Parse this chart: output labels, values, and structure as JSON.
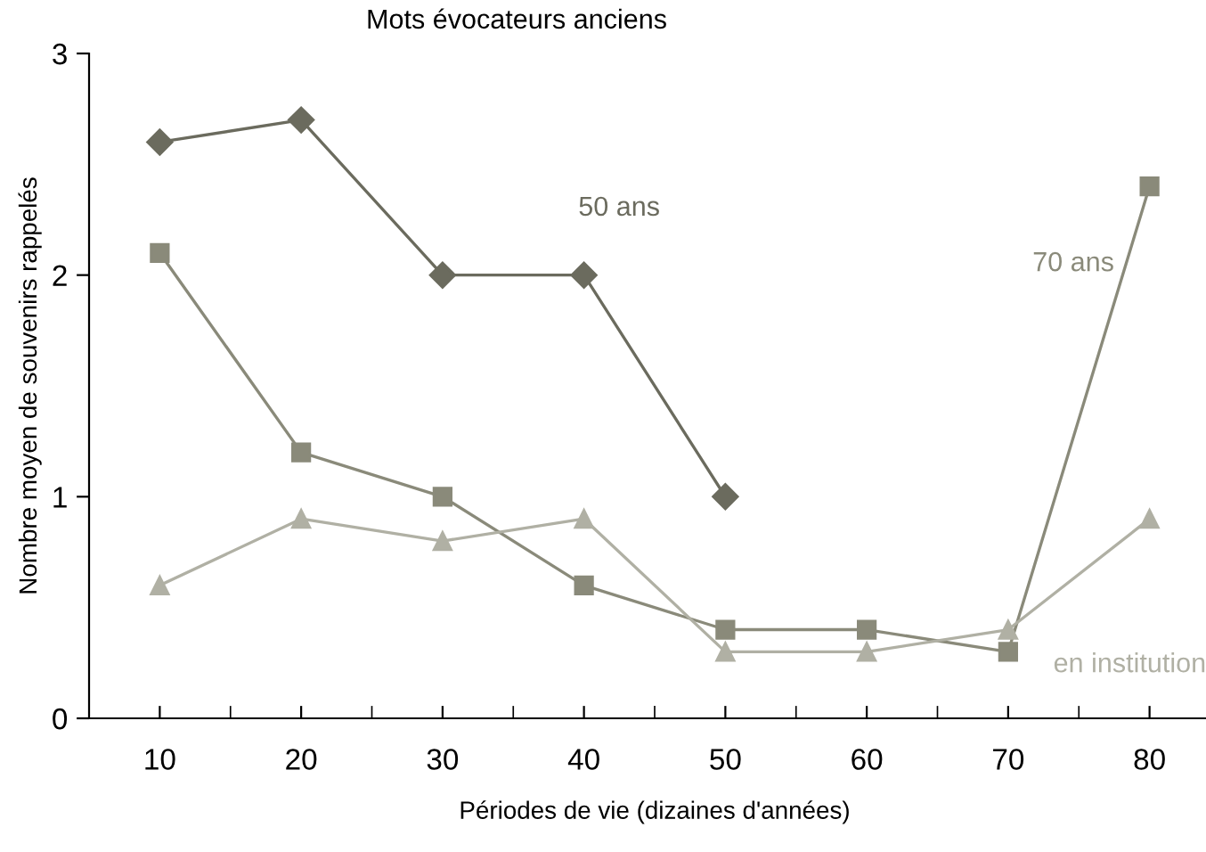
{
  "chart_data": {
    "type": "line",
    "title": "Mots évocateurs anciens",
    "xlabel": "Périodes de vie (dizaines d'années)",
    "ylabel": "Nombre moyen de souvenirs rappelés",
    "categories": [
      "10",
      "20",
      "30",
      "40",
      "50",
      "60",
      "70",
      "80"
    ],
    "ylim": [
      0,
      3
    ],
    "yticks": [
      0,
      1,
      2,
      3
    ],
    "grid": false,
    "legend": false,
    "series": [
      {
        "name": "50 ans",
        "color": "#6b6b5e",
        "marker": "diamond",
        "values": [
          2.6,
          2.7,
          2.0,
          2.0,
          1.0,
          null,
          null,
          null
        ]
      },
      {
        "name": "70 ans",
        "color": "#8a8a7a",
        "marker": "square",
        "values": [
          2.1,
          1.2,
          1.0,
          0.6,
          0.4,
          0.4,
          0.3,
          2.4
        ]
      },
      {
        "name": "en institution",
        "color": "#b0b0a4",
        "marker": "triangle",
        "values": [
          0.6,
          0.9,
          0.8,
          0.9,
          0.3,
          0.3,
          0.4,
          0.9
        ]
      }
    ]
  }
}
